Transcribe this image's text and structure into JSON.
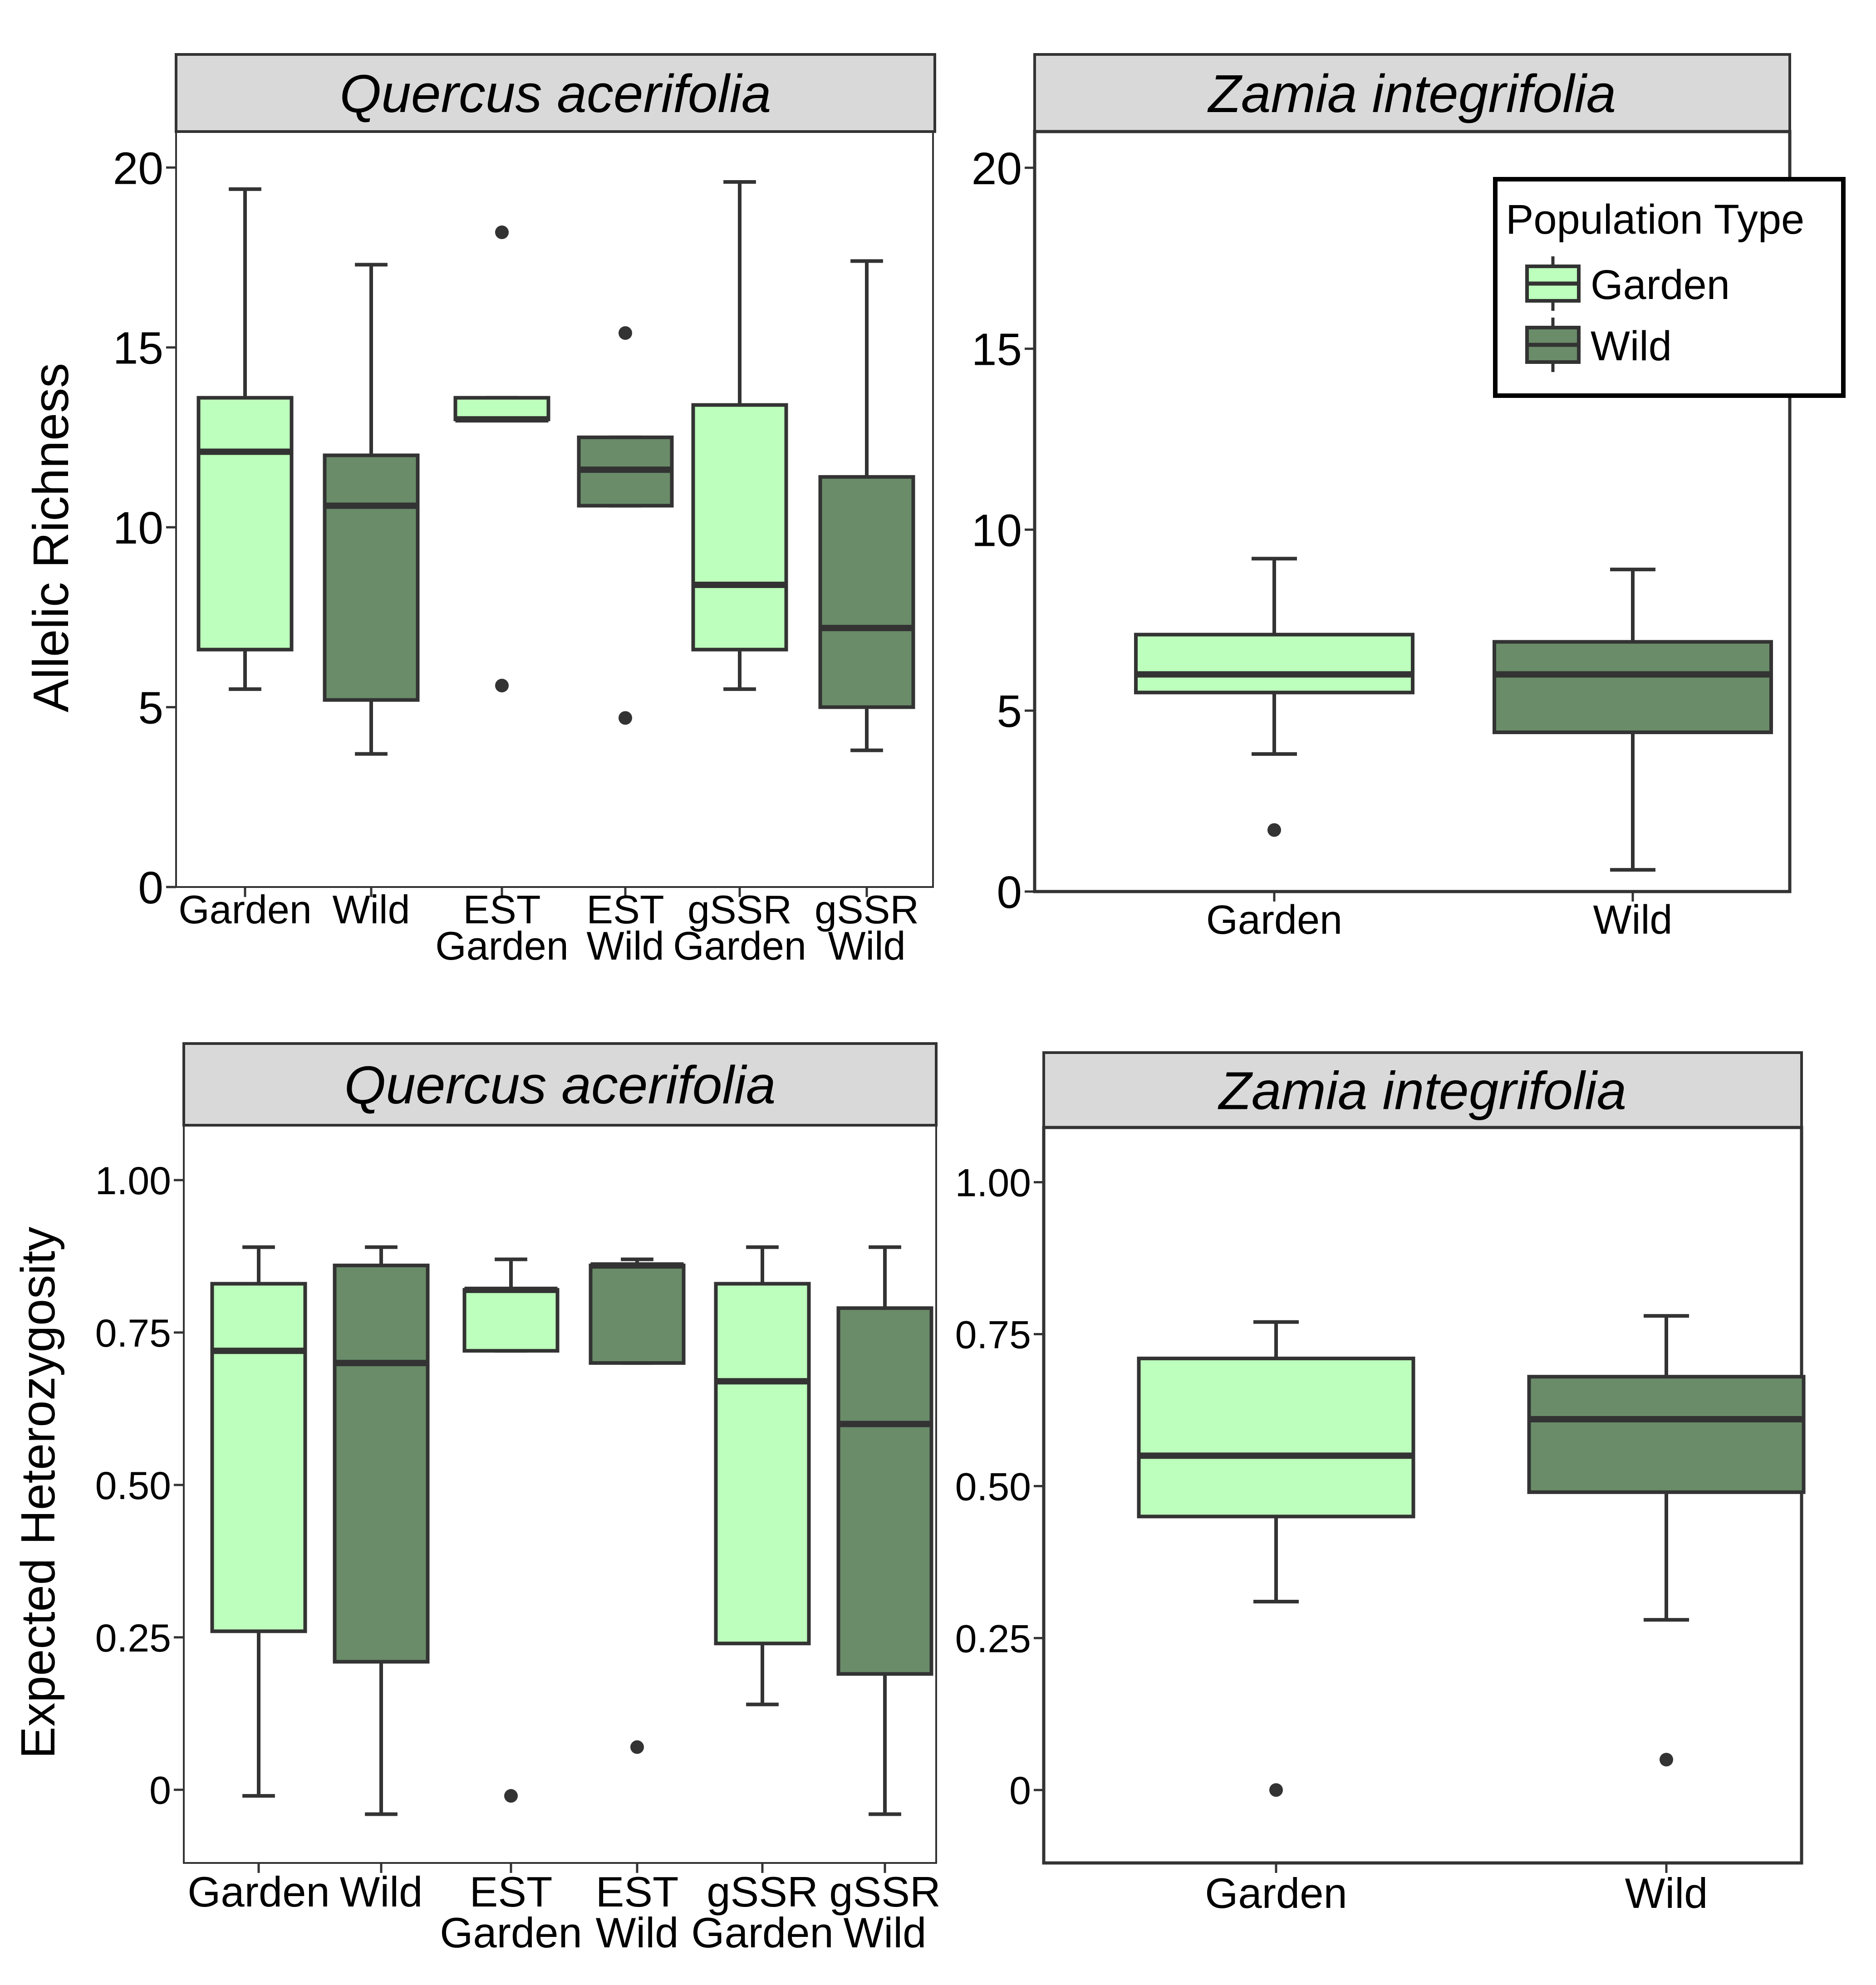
{
  "colors": {
    "garden": "#bdffbc",
    "wild": "#6a8c69",
    "stroke": "#333333",
    "strip": "#d9d9d9",
    "panel_border": "#333333"
  },
  "legend": {
    "title": "Population Type",
    "items": [
      {
        "label": "Garden",
        "color_key": "garden"
      },
      {
        "label": "Wild",
        "color_key": "wild"
      }
    ],
    "placement": "top-right of top-right panel"
  },
  "chart_data": [
    {
      "type": "box",
      "strip_title": "Quercus acerifolia",
      "xlabel": "",
      "ylabel": "Allelic Richness",
      "ylim": [
        0,
        21
      ],
      "yticks": [
        "0",
        "5",
        "10",
        "15",
        "20"
      ],
      "ytick_values": [
        0,
        5,
        10,
        15,
        20
      ],
      "grid": false,
      "categories": [
        {
          "label": [
            "Garden"
          ],
          "group": "garden",
          "whisker_low": 5.5,
          "q1": 6.6,
          "median": 12.1,
          "q3": 13.6,
          "whisker_high": 19.4,
          "outliers": []
        },
        {
          "label": [
            "Wild"
          ],
          "group": "wild",
          "whisker_low": 3.7,
          "q1": 5.2,
          "median": 10.6,
          "q3": 12.0,
          "whisker_high": 17.3,
          "outliers": []
        },
        {
          "label": [
            "EST",
            "Garden"
          ],
          "group": "garden",
          "whisker_low": 13.0,
          "q1": 13.0,
          "median": 13.0,
          "q3": 13.6,
          "whisker_high": 13.6,
          "outliers": [
            18.2,
            5.6
          ]
        },
        {
          "label": [
            "EST",
            "Wild"
          ],
          "group": "wild",
          "whisker_low": 10.6,
          "q1": 10.6,
          "median": 11.6,
          "q3": 12.5,
          "whisker_high": 12.5,
          "outliers": [
            15.4,
            4.7
          ]
        },
        {
          "label": [
            "gSSR",
            "Garden"
          ],
          "group": "garden",
          "whisker_low": 5.5,
          "q1": 6.6,
          "median": 8.4,
          "q3": 13.4,
          "whisker_high": 19.6,
          "outliers": []
        },
        {
          "label": [
            "gSSR",
            "Wild"
          ],
          "group": "wild",
          "whisker_low": 3.8,
          "q1": 5.0,
          "median": 7.2,
          "q3": 11.4,
          "whisker_high": 17.4,
          "outliers": []
        }
      ]
    },
    {
      "type": "box",
      "strip_title": "Zamia integrifolia",
      "xlabel": "",
      "ylabel": "",
      "ylim": [
        0,
        21
      ],
      "yticks": [
        "0",
        "5",
        "10",
        "15",
        "20"
      ],
      "ytick_values": [
        0,
        5,
        10,
        15,
        20
      ],
      "grid": false,
      "categories": [
        {
          "label": [
            "Garden"
          ],
          "group": "garden",
          "whisker_low": 3.8,
          "q1": 5.5,
          "median": 6.0,
          "q3": 7.1,
          "whisker_high": 9.2,
          "outliers": [
            1.7
          ]
        },
        {
          "label": [
            "Wild"
          ],
          "group": "wild",
          "whisker_low": 0.6,
          "q1": 4.4,
          "median": 6.0,
          "q3": 6.9,
          "whisker_high": 8.9,
          "outliers": []
        }
      ]
    },
    {
      "type": "box",
      "strip_title": "Quercus acerifolia",
      "xlabel": "",
      "ylabel": "Expected Heterozygosity",
      "ylim": [
        -0.12,
        1.09
      ],
      "yticks": [
        "0",
        "0.25",
        "0.50",
        "0.75",
        "1.00"
      ],
      "ytick_values": [
        0,
        0.25,
        0.5,
        0.75,
        1.0
      ],
      "grid": false,
      "categories": [
        {
          "label": [
            "Garden"
          ],
          "group": "garden",
          "whisker_low": -0.01,
          "q1": 0.26,
          "median": 0.72,
          "q3": 0.83,
          "whisker_high": 0.89,
          "outliers": []
        },
        {
          "label": [
            "Wild"
          ],
          "group": "wild",
          "whisker_low": -0.04,
          "q1": 0.21,
          "median": 0.7,
          "q3": 0.86,
          "whisker_high": 0.89,
          "outliers": []
        },
        {
          "label": [
            "EST",
            "Garden"
          ],
          "group": "garden",
          "whisker_low": 0.72,
          "q1": 0.72,
          "median": 0.82,
          "q3": 0.82,
          "whisker_high": 0.87,
          "outliers": [
            -0.01
          ]
        },
        {
          "label": [
            "EST",
            "Wild"
          ],
          "group": "wild",
          "whisker_low": 0.7,
          "q1": 0.7,
          "median": 0.86,
          "q3": 0.86,
          "whisker_high": 0.87,
          "outliers": [
            0.07
          ]
        },
        {
          "label": [
            "gSSR",
            "Garden"
          ],
          "group": "garden",
          "whisker_low": 0.14,
          "q1": 0.24,
          "median": 0.67,
          "q3": 0.83,
          "whisker_high": 0.89,
          "outliers": []
        },
        {
          "label": [
            "gSSR",
            "Wild"
          ],
          "group": "wild",
          "whisker_low": -0.04,
          "q1": 0.19,
          "median": 0.6,
          "q3": 0.79,
          "whisker_high": 0.89,
          "outliers": []
        }
      ]
    },
    {
      "type": "box",
      "strip_title": "Zamia integrifolia",
      "xlabel": "",
      "ylabel": "",
      "ylim": [
        -0.12,
        1.09
      ],
      "yticks": [
        "0",
        "0.25",
        "0.50",
        "0.75",
        "1.00"
      ],
      "ytick_values": [
        0,
        0.25,
        0.5,
        0.75,
        1.0
      ],
      "grid": false,
      "categories": [
        {
          "label": [
            "Garden"
          ],
          "group": "garden",
          "whisker_low": 0.31,
          "q1": 0.45,
          "median": 0.55,
          "q3": 0.71,
          "whisker_high": 0.77,
          "outliers": [
            0.0
          ]
        },
        {
          "label": [
            "Wild"
          ],
          "group": "wild",
          "whisker_low": 0.28,
          "q1": 0.49,
          "median": 0.61,
          "q3": 0.68,
          "whisker_high": 0.78,
          "outliers": [
            0.05
          ]
        }
      ]
    }
  ]
}
